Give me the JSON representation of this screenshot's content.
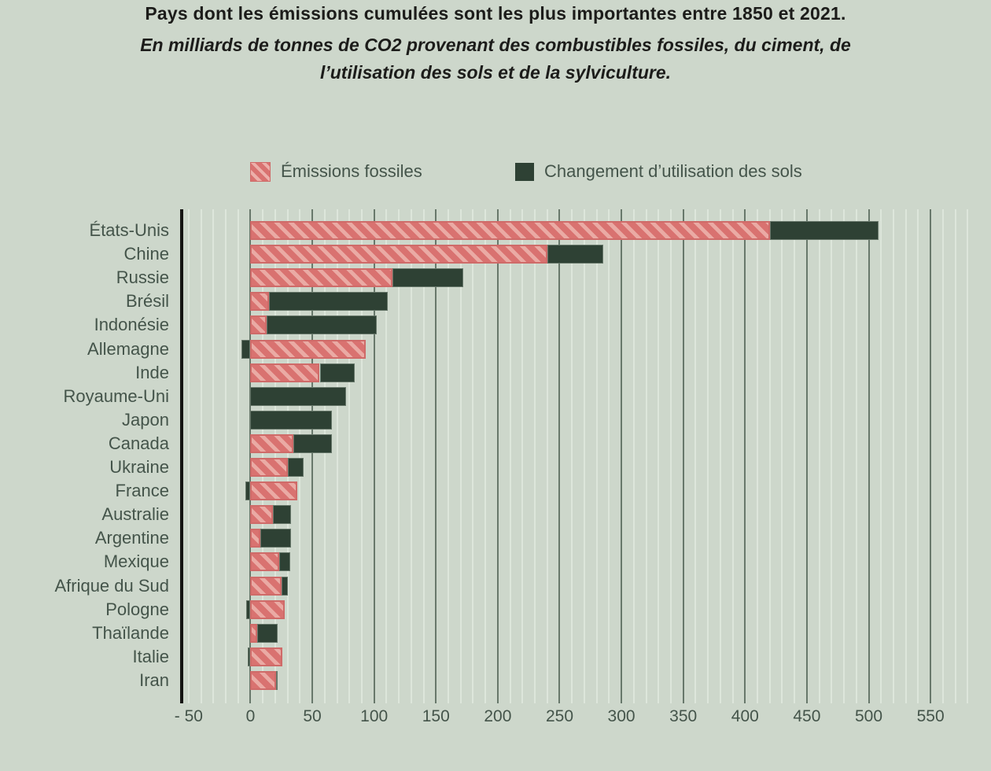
{
  "title": "Pays dont les émissions cumulées sont les plus importantes entre 1850 et 2021.",
  "subtitle_line1": "En milliards de tonnes de CO2 provenant des combustibles fossiles, du ciment, de",
  "subtitle_line2": "l’utilisation des sols et de la sylviculture.",
  "legend": [
    {
      "label": "Émissions fossiles",
      "swatch": "red-diagonal-hatch",
      "color": "#d97270"
    },
    {
      "label": "Changement d’utilisation des sols",
      "swatch": "solid-dark-green",
      "color": "#2e4134"
    }
  ],
  "colors": {
    "background": "#cdd7cb",
    "fossil_base": "#d97270",
    "fossil_stripe": "#eaaaa4",
    "landuse": "#2e4134",
    "major_gridline": "#68786b",
    "minor_gridline": "#dde6db",
    "axis_spine": "#161614",
    "label_text": "#44544a",
    "title_text": "#1c1c1a"
  },
  "chart_data": {
    "type": "bar",
    "orientation": "horizontal",
    "stacked": true,
    "title": "Pays dont les émissions cumulées sont les plus importantes entre 1850 et 2021.",
    "subtitle": "En milliards de tonnes de CO2 provenant des combustibles fossiles, du ciment, de l’utilisation des sols et de la sylviculture.",
    "unit": "milliards de tonnes de CO2",
    "categories": [
      "États-Unis",
      "Chine",
      "Russie",
      "Brésil",
      "Indonésie",
      "Allemagne",
      "Inde",
      "Royaume-Uni",
      "Japon",
      "Canada",
      "Ukraine",
      "France",
      "Australie",
      "Argentine",
      "Mexique",
      "Afrique du Sud",
      "Pologne",
      "Thaïlande",
      "Italie",
      "Iran"
    ],
    "series": [
      {
        "name": "Émissions fossiles",
        "values": [
          420,
          240,
          115,
          15,
          13,
          93,
          56,
          0,
          0,
          35,
          30,
          38,
          18,
          8,
          23,
          25,
          28,
          5.5,
          26,
          20.5
        ]
      },
      {
        "name": "Changement d’utilisation des sols",
        "values": [
          88,
          45,
          57,
          96,
          89,
          -7,
          28,
          77,
          66,
          31,
          13,
          -4,
          15,
          25,
          9,
          5,
          -3.5,
          16.5,
          -2.5,
          1
        ]
      }
    ],
    "xlim": [
      -55,
      590
    ],
    "xticks": [
      -50,
      0,
      50,
      100,
      150,
      200,
      250,
      300,
      350,
      400,
      450,
      500,
      550
    ],
    "grid": "vertical, major every 50 from 0 to 550, minor every 10",
    "legend_position": "top"
  },
  "axis": {
    "tick_labels": [
      "- 50",
      "0",
      "50",
      "100",
      "150",
      "200",
      "250",
      "300",
      "350",
      "400",
      "450",
      "500",
      "550"
    ]
  }
}
